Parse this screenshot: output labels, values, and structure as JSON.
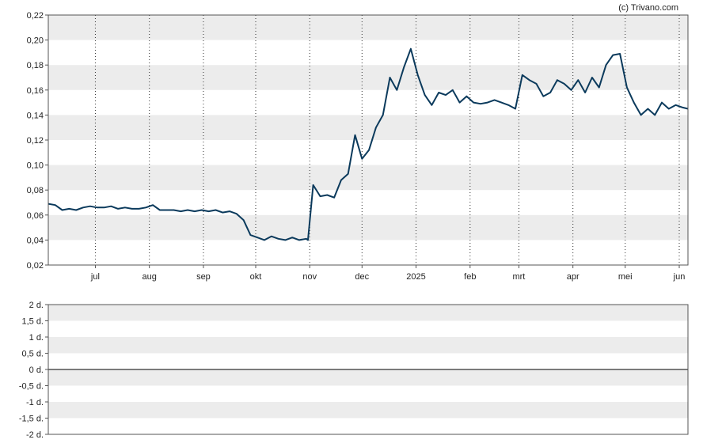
{
  "credit": "(c) Trivano.com",
  "chart_data": [
    {
      "type": "line",
      "title": "",
      "xlabel": "",
      "ylabel": "",
      "ylim": [
        0.02,
        0.22
      ],
      "y_ticks": [
        "0,02",
        "0,04",
        "0,06",
        "0,08",
        "0,10",
        "0,12",
        "0,14",
        "0,16",
        "0,18",
        "0,20",
        "0,22"
      ],
      "y_tick_values": [
        0.02,
        0.04,
        0.06,
        0.08,
        0.1,
        0.12,
        0.14,
        0.16,
        0.18,
        0.2,
        0.22
      ],
      "x_ticks": [
        "jul",
        "aug",
        "sep",
        "okt",
        "nov",
        "dec",
        "2025",
        "feb",
        "mrt",
        "apr",
        "mei",
        "jun"
      ],
      "x_tick_dates": [
        "2024-07-01",
        "2024-08-01",
        "2024-09-01",
        "2024-10-01",
        "2024-11-01",
        "2024-12-01",
        "2025-01-01",
        "2025-02-01",
        "2025-03-01",
        "2025-04-01",
        "2025-05-01",
        "2025-06-01"
      ],
      "xlim": [
        "2024-06-04",
        "2025-06-06"
      ],
      "grid": "alternating horizontal bands, dotted vertical month lines",
      "line_color": "#0b3a5c",
      "series": [
        {
          "x": [
            "2024-06-04",
            "2024-06-08",
            "2024-06-12",
            "2024-06-16",
            "2024-06-20",
            "2024-06-24",
            "2024-06-28",
            "2024-07-02",
            "2024-07-06",
            "2024-07-10",
            "2024-07-14",
            "2024-07-18",
            "2024-07-22",
            "2024-07-26",
            "2024-07-30",
            "2024-08-03",
            "2024-08-07",
            "2024-08-11",
            "2024-08-15",
            "2024-08-19",
            "2024-08-23",
            "2024-08-27",
            "2024-08-31",
            "2024-09-04",
            "2024-09-08",
            "2024-09-12",
            "2024-09-16",
            "2024-09-20",
            "2024-09-24",
            "2024-09-28",
            "2024-10-02",
            "2024-10-06",
            "2024-10-10",
            "2024-10-14",
            "2024-10-18",
            "2024-10-22",
            "2024-10-26",
            "2024-10-30",
            "2024-10-31",
            "2024-11-03",
            "2024-11-07",
            "2024-11-11",
            "2024-11-15",
            "2024-11-19",
            "2024-11-23",
            "2024-11-27",
            "2024-12-01",
            "2024-12-05",
            "2024-12-09",
            "2024-12-13",
            "2024-12-17",
            "2024-12-21",
            "2024-12-25",
            "2024-12-29",
            "2025-01-02",
            "2025-01-06",
            "2025-01-10",
            "2025-01-14",
            "2025-01-18",
            "2025-01-22",
            "2025-01-26",
            "2025-01-30",
            "2025-02-03",
            "2025-02-07",
            "2025-02-11",
            "2025-02-15",
            "2025-02-19",
            "2025-02-23",
            "2025-02-27",
            "2025-03-03",
            "2025-03-07",
            "2025-03-11",
            "2025-03-15",
            "2025-03-19",
            "2025-03-23",
            "2025-03-27",
            "2025-03-31",
            "2025-04-04",
            "2025-04-08",
            "2025-04-12",
            "2025-04-16",
            "2025-04-20",
            "2025-04-24",
            "2025-04-28",
            "2025-05-02",
            "2025-05-06",
            "2025-05-10",
            "2025-05-14",
            "2025-05-18",
            "2025-05-22",
            "2025-05-26",
            "2025-05-30",
            "2025-06-03",
            "2025-06-06"
          ],
          "values": [
            0.069,
            0.068,
            0.064,
            0.065,
            0.064,
            0.066,
            0.067,
            0.066,
            0.066,
            0.067,
            0.065,
            0.066,
            0.065,
            0.065,
            0.066,
            0.068,
            0.064,
            0.064,
            0.064,
            0.063,
            0.064,
            0.063,
            0.064,
            0.063,
            0.064,
            0.062,
            0.063,
            0.061,
            0.056,
            0.044,
            0.042,
            0.04,
            0.043,
            0.041,
            0.04,
            0.042,
            0.04,
            0.041,
            0.04,
            0.084,
            0.075,
            0.076,
            0.074,
            0.088,
            0.093,
            0.124,
            0.105,
            0.112,
            0.13,
            0.14,
            0.17,
            0.16,
            0.178,
            0.193,
            0.172,
            0.156,
            0.148,
            0.158,
            0.156,
            0.16,
            0.15,
            0.155,
            0.15,
            0.149,
            0.15,
            0.152,
            0.15,
            0.148,
            0.145,
            0.172,
            0.168,
            0.165,
            0.155,
            0.158,
            0.168,
            0.165,
            0.16,
            0.168,
            0.158,
            0.17,
            0.162,
            0.18,
            0.188,
            0.189,
            0.162,
            0.15,
            0.14,
            0.145,
            0.14,
            0.15,
            0.145,
            0.148,
            0.146,
            0.145
          ]
        }
      ]
    },
    {
      "type": "bar",
      "title": "",
      "xlabel": "",
      "ylabel": "",
      "ylim": [
        -2,
        2
      ],
      "y_ticks": [
        "2 d.",
        "1,5 d.",
        "1 d.",
        "0,5 d.",
        "0 d.",
        "-0,5 d.",
        "-1 d.",
        "-1,5 d.",
        "-2 d."
      ],
      "y_tick_values": [
        2,
        1.5,
        1,
        0.5,
        0,
        -0.5,
        -1,
        -1.5,
        -2
      ],
      "grid": "alternating horizontal bands, zero line",
      "values": []
    }
  ]
}
